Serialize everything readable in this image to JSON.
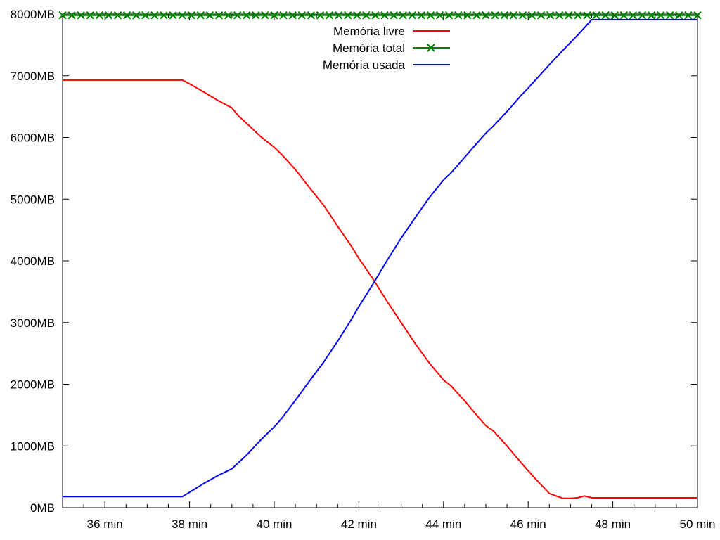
{
  "chart_data": {
    "type": "line",
    "title": "",
    "xlabel": "",
    "ylabel": "",
    "xlim": [
      35,
      50
    ],
    "ylim": [
      0,
      8000
    ],
    "x_ticks": [
      36,
      38,
      40,
      42,
      44,
      46,
      48,
      50
    ],
    "x_tick_labels": [
      "36 min",
      "38 min",
      "40 min",
      "42 min",
      "44 min",
      "46 min",
      "48 min",
      "50 min"
    ],
    "y_ticks": [
      0,
      1000,
      2000,
      3000,
      4000,
      5000,
      6000,
      7000,
      8000
    ],
    "y_tick_labels": [
      "0MB",
      "1000MB",
      "2000MB",
      "3000MB",
      "4000MB",
      "5000MB",
      "6000MB",
      "7000MB",
      "8000MB"
    ],
    "grid": false,
    "legend_position": "top-center",
    "series": [
      {
        "name": "Memória livre",
        "color": "#ff0000",
        "marker": "none",
        "x": [
          35.0,
          37.83,
          38.0,
          38.33,
          38.67,
          39.0,
          39.17,
          39.33,
          39.67,
          40.0,
          40.17,
          40.5,
          40.83,
          41.17,
          41.5,
          41.83,
          42.0,
          42.33,
          42.67,
          43.0,
          43.33,
          43.67,
          44.0,
          44.17,
          44.5,
          44.83,
          45.0,
          45.17,
          45.5,
          45.83,
          46.0,
          46.17,
          46.5,
          46.7,
          46.83,
          47.0,
          47.17,
          47.33,
          47.5,
          48.0,
          50.0
        ],
        "y": [
          6930,
          6930,
          6870,
          6740,
          6600,
          6480,
          6340,
          6240,
          6020,
          5840,
          5730,
          5480,
          5190,
          4900,
          4560,
          4230,
          4040,
          3710,
          3340,
          3000,
          2660,
          2340,
          2070,
          1980,
          1730,
          1460,
          1330,
          1250,
          1000,
          730,
          600,
          470,
          230,
          180,
          150,
          150,
          160,
          190,
          160,
          160,
          160
        ]
      },
      {
        "name": "Memória total",
        "color": "#008000",
        "marker": "x",
        "x": [
          35.0,
          50.0
        ],
        "y": [
          7980,
          7980
        ]
      },
      {
        "name": "Memória usada",
        "color": "#0000ff",
        "marker": "none",
        "x": [
          35.0,
          37.83,
          38.0,
          38.33,
          38.67,
          39.0,
          39.17,
          39.33,
          39.67,
          40.0,
          40.17,
          40.5,
          40.83,
          41.17,
          41.5,
          41.83,
          42.0,
          42.33,
          42.67,
          43.0,
          43.33,
          43.67,
          44.0,
          44.17,
          44.5,
          44.83,
          45.0,
          45.17,
          45.5,
          45.83,
          46.0,
          46.17,
          46.5,
          46.83,
          47.0,
          47.17,
          47.33,
          47.5,
          48.0,
          50.0
        ],
        "y": [
          180,
          180,
          250,
          390,
          520,
          630,
          740,
          840,
          1090,
          1310,
          1440,
          1740,
          2050,
          2360,
          2700,
          3060,
          3260,
          3620,
          4010,
          4370,
          4700,
          5030,
          5310,
          5420,
          5680,
          5940,
          6070,
          6180,
          6420,
          6680,
          6800,
          6930,
          7180,
          7420,
          7540,
          7660,
          7780,
          7910,
          7910,
          7910
        ]
      }
    ]
  }
}
